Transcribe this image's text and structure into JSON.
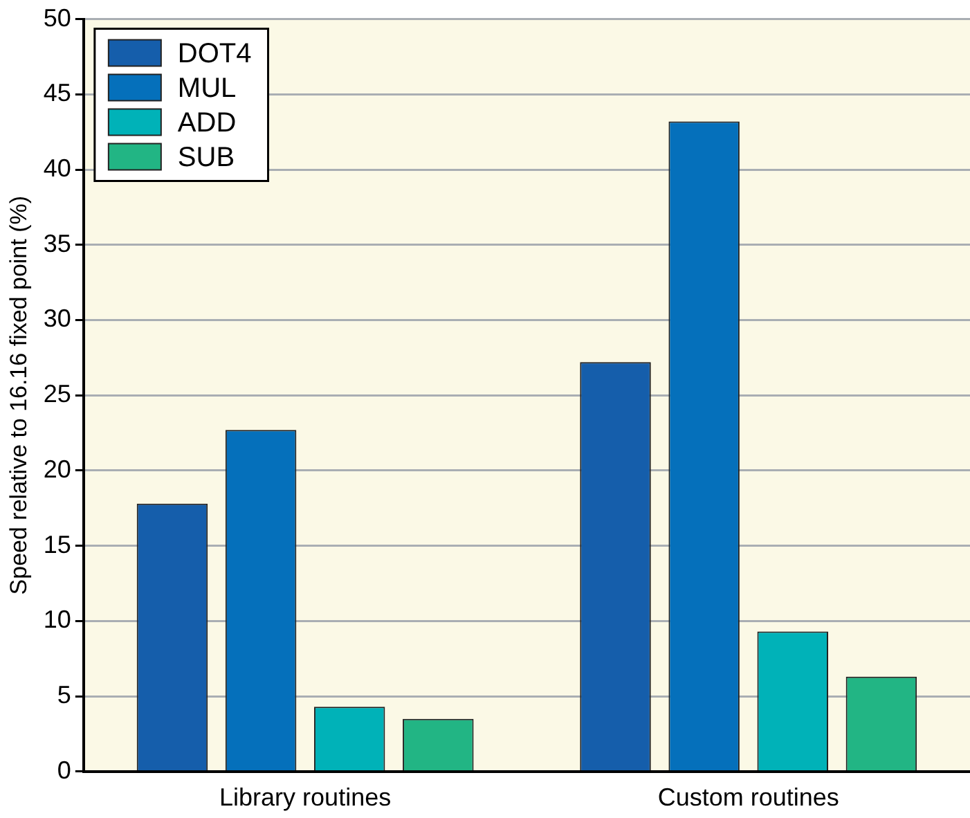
{
  "chart_data": {
    "type": "bar",
    "ylabel": "Speed relative to 16.16 fixed point (%)",
    "categories": [
      "Library routines",
      "Custom routines"
    ],
    "series": [
      {
        "name": "DOT4",
        "color": "#155eab",
        "values": [
          17.8,
          27.2
        ]
      },
      {
        "name": "MUL",
        "color": "#0570bb",
        "values": [
          22.7,
          43.2
        ]
      },
      {
        "name": "ADD",
        "color": "#00b2b8",
        "values": [
          4.3,
          9.3
        ]
      },
      {
        "name": "SUB",
        "color": "#22b584",
        "values": [
          3.5,
          6.3
        ]
      }
    ],
    "ylim": [
      0,
      50
    ],
    "yticks": [
      0,
      5,
      10,
      15,
      20,
      25,
      30,
      35,
      40,
      45,
      50
    ],
    "grid": "y",
    "legend": "top left"
  }
}
